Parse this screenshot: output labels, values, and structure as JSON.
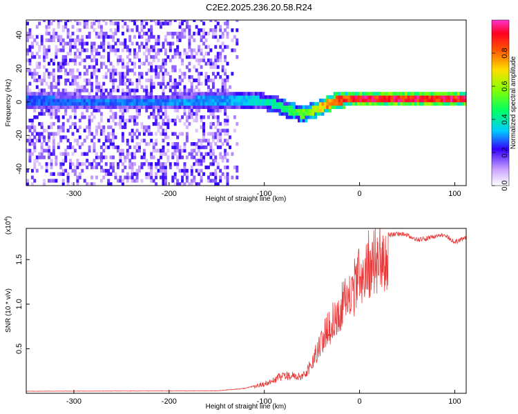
{
  "title": "C2E2.2025.236.20.58.R24",
  "chart_data": [
    {
      "type": "heatmap",
      "xlabel": "Height of straight line (km)",
      "ylabel": "Frequency (Hz)",
      "xlim": [
        -350,
        112
      ],
      "ylim": [
        -50,
        49
      ],
      "x_ticks": [
        -300,
        -200,
        -100,
        0,
        100
      ],
      "y_ticks": [
        -40,
        -20,
        0,
        20,
        40
      ],
      "colorbar": {
        "label": "Normalized spectral amplitude",
        "range": [
          0,
          1
        ],
        "ticks": [
          "0.0",
          "0.2",
          "0.4",
          "0.6",
          "0.8"
        ]
      },
      "ridge_center_hz": [
        {
          "x": -340,
          "y": 0
        },
        {
          "x": -300,
          "y": -1
        },
        {
          "x": -250,
          "y": -1
        },
        {
          "x": -200,
          "y": -1
        },
        {
          "x": -150,
          "y": 0
        },
        {
          "x": -110,
          "y": 0
        },
        {
          "x": -90,
          "y": -2
        },
        {
          "x": -75,
          "y": -6
        },
        {
          "x": -60,
          "y": -8
        },
        {
          "x": -45,
          "y": -5
        },
        {
          "x": -30,
          "y": -1
        },
        {
          "x": -15,
          "y": 1
        },
        {
          "x": 0,
          "y": 1
        },
        {
          "x": 50,
          "y": 1
        },
        {
          "x": 112,
          "y": 1
        }
      ],
      "noisy_region_km": [
        -350,
        -140
      ],
      "amplitude_trend": [
        {
          "x": -350,
          "v": 0.28
        },
        {
          "x": -140,
          "v": 0.32
        },
        {
          "x": -100,
          "v": 0.4
        },
        {
          "x": -60,
          "v": 0.55
        },
        {
          "x": -30,
          "v": 0.85
        },
        {
          "x": 0,
          "v": 0.95
        },
        {
          "x": 112,
          "v": 0.95
        }
      ]
    },
    {
      "type": "line",
      "xlabel": "Height of straight line (km)",
      "ylabel": "SNR (10 * v/v)",
      "y_multiplier": "(x10",
      "y_multiplier_exp": "4",
      "y_multiplier_close": ")",
      "xlim": [
        -350,
        112
      ],
      "ylim": [
        0,
        18500
      ],
      "x_ticks": [
        -300,
        -200,
        -100,
        0,
        100
      ],
      "y_ticks": [
        {
          "v": 5000,
          "label": "0.5"
        },
        {
          "v": 10000,
          "label": "1.0"
        },
        {
          "v": 15000,
          "label": "1.5"
        }
      ],
      "color": "#e83a3a",
      "series": [
        {
          "envelope": [
            {
              "x": -350,
              "y": 250
            },
            {
              "x": -150,
              "y": 300
            },
            {
              "x": -120,
              "y": 600
            },
            {
              "x": -100,
              "y": 1200
            },
            {
              "x": -80,
              "y": 2400
            },
            {
              "x": -60,
              "y": 2200
            },
            {
              "x": -50,
              "y": 4000
            },
            {
              "x": -40,
              "y": 7000
            },
            {
              "x": -30,
              "y": 9000
            },
            {
              "x": -20,
              "y": 11000
            },
            {
              "x": -10,
              "y": 13000
            },
            {
              "x": 0,
              "y": 15000
            },
            {
              "x": 10,
              "y": 16800
            },
            {
              "x": 20,
              "y": 17600
            },
            {
              "x": 30,
              "y": 18000
            },
            {
              "x": 40,
              "y": 18200
            },
            {
              "x": 50,
              "y": 18000
            },
            {
              "x": 60,
              "y": 17500
            },
            {
              "x": 70,
              "y": 17600
            },
            {
              "x": 80,
              "y": 17900
            },
            {
              "x": 90,
              "y": 18000
            },
            {
              "x": 100,
              "y": 17200
            },
            {
              "x": 112,
              "y": 17800
            }
          ]
        }
      ]
    }
  ]
}
